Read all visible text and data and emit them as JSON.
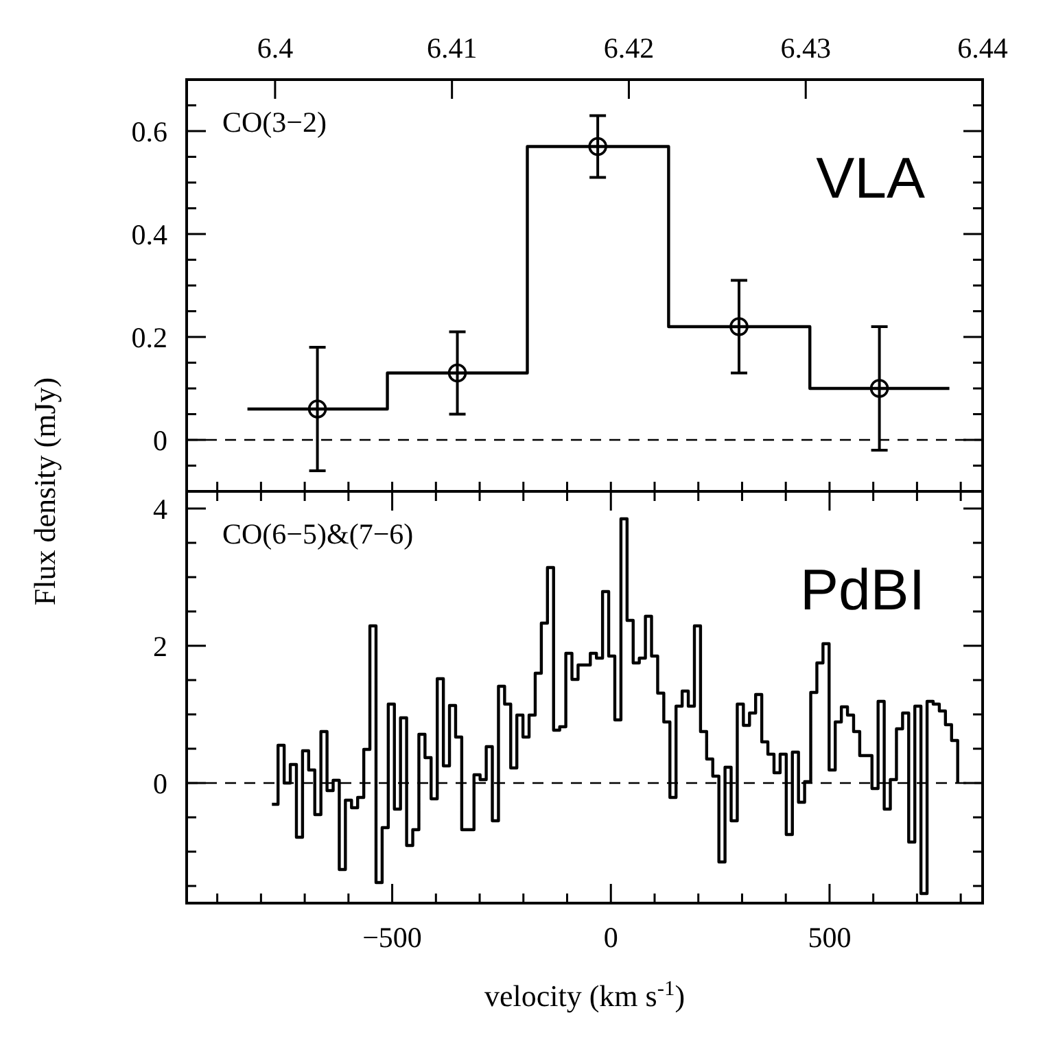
{
  "chart_data": [
    {
      "type": "step",
      "ylabel": "Flux density (mJy)",
      "annotations": [
        "CO(3−2)",
        "VLA"
      ],
      "xlim": [
        -970,
        850
      ],
      "xticks": [
        {
          "value": -900,
          "label": null
        },
        {
          "value": -800,
          "label": null
        },
        {
          "value": -700,
          "label": null
        },
        {
          "value": -600,
          "label": null
        },
        {
          "value": -500,
          "label": null
        },
        {
          "value": -400,
          "label": null
        },
        {
          "value": -300,
          "label": null
        },
        {
          "value": -200,
          "label": null
        },
        {
          "value": -100,
          "label": null
        },
        {
          "value": 0,
          "label": null
        },
        {
          "value": 100,
          "label": null
        },
        {
          "value": 200,
          "label": null
        },
        {
          "value": 300,
          "label": null
        },
        {
          "value": 400,
          "label": null
        },
        {
          "value": 500,
          "label": null
        },
        {
          "value": 600,
          "label": null
        },
        {
          "value": 700,
          "label": null
        },
        {
          "value": 800,
          "label": null
        }
      ],
      "x2lim": [
        6.395,
        6.44
      ],
      "x2ticks": [
        6.4,
        6.41,
        6.42,
        6.43,
        6.44
      ],
      "ylim": [
        -0.1,
        0.7
      ],
      "yticks": [
        {
          "value": -0.05,
          "label": null
        },
        0,
        {
          "value": 0.05,
          "label": null
        },
        {
          "value": 0.1,
          "label": null
        },
        {
          "value": 0.15,
          "label": null
        },
        0.2,
        {
          "value": 0.25,
          "label": null
        },
        {
          "value": 0.3,
          "label": null
        },
        {
          "value": 0.35,
          "label": null
        },
        0.4,
        {
          "value": 0.45,
          "label": null
        },
        {
          "value": 0.5,
          "label": null
        },
        {
          "value": 0.55,
          "label": null
        },
        0.6,
        {
          "value": 0.65,
          "label": null
        }
      ],
      "tick_labels": "y",
      "ref_lines": [
        {
          "axis": "y",
          "value": 0,
          "line_style": "dashed"
        }
      ],
      "series": [
        {
          "type": "step",
          "color": "#000000",
          "x": [
            -831,
            -511,
            -191,
            132,
            455,
            774
          ],
          "values": [
            0.06,
            0.13,
            0.57,
            0.22,
            0.1,
            0.1
          ]
        },
        {
          "type": "scatter",
          "color": "#000000",
          "marker": "circle",
          "x": [
            -671,
            -351,
            -30,
            293,
            614
          ],
          "values": [
            0.06,
            0.13,
            0.57,
            0.22,
            0.1
          ],
          "errors": [
            0.12,
            0.08,
            0.06,
            0.09,
            0.12
          ]
        }
      ]
    },
    {
      "type": "step",
      "xlabel": "velocity (km s$^{-1}$)",
      "annotations": [
        "CO(6−5)&(7−6)",
        "PdBI"
      ],
      "xlim": [
        -970,
        850
      ],
      "xticks": [
        {
          "value": -900,
          "label": null
        },
        {
          "value": -800,
          "label": null
        },
        {
          "value": -700,
          "label": null
        },
        {
          "value": -600,
          "label": null
        },
        {
          "value": -500,
          "label": "−500"
        },
        {
          "value": -400,
          "label": null
        },
        {
          "value": -300,
          "label": null
        },
        {
          "value": -200,
          "label": null
        },
        {
          "value": -100,
          "label": null
        },
        0,
        {
          "value": 100,
          "label": null
        },
        {
          "value": 200,
          "label": null
        },
        {
          "value": 300,
          "label": null
        },
        {
          "value": 400,
          "label": null
        },
        500,
        {
          "value": 600,
          "label": null
        },
        {
          "value": 700,
          "label": null
        },
        {
          "value": 800,
          "label": null
        }
      ],
      "ylim": [
        -1.75,
        4.25
      ],
      "yticks": [
        {
          "value": -1.5,
          "label": null
        },
        {
          "value": -1,
          "label": null
        },
        {
          "value": -0.5,
          "label": null
        },
        0,
        {
          "value": 0.5,
          "label": null
        },
        {
          "value": 1,
          "label": null
        },
        {
          "value": 1.5,
          "label": null
        },
        2,
        {
          "value": 2.5,
          "label": null
        },
        {
          "value": 3,
          "label": null
        },
        {
          "value": 3.5,
          "label": null
        },
        4
      ],
      "ref_lines": [
        {
          "axis": "y",
          "value": 0,
          "line_style": "dashed"
        }
      ],
      "series": [
        {
          "type": "step",
          "color": "#000000",
          "x": [
            -775,
            -761,
            -747,
            -733,
            -719,
            -705,
            -691,
            -677,
            -663,
            -649,
            -635,
            -621,
            -607,
            -593,
            -579,
            -565,
            -551,
            -537,
            -523,
            -509,
            -495,
            -481,
            -467,
            -453,
            -439,
            -425,
            -411,
            -397,
            -383,
            -369,
            -355,
            -341,
            -327,
            -313,
            -299,
            -285,
            -271,
            -257,
            -243,
            -229,
            -215,
            -201,
            -187,
            -173,
            -159,
            -145,
            -131,
            -117,
            -103,
            -89,
            -75,
            -61,
            -47,
            -33,
            -19,
            -5,
            9,
            23,
            37,
            51,
            65,
            79,
            93,
            107,
            121,
            135,
            149,
            163,
            177,
            191,
            205,
            219,
            233,
            247,
            261,
            275,
            289,
            303,
            317,
            331,
            345,
            359,
            373,
            387,
            401,
            415,
            429,
            443,
            457,
            471,
            485,
            499,
            513,
            527,
            541,
            555,
            569,
            583,
            597,
            611,
            625,
            639,
            653,
            667,
            681,
            695,
            709,
            723,
            737,
            751,
            765,
            779,
            793
          ],
          "values": [
            -0.31,
            0.55,
            0.0,
            0.27,
            -0.79,
            0.47,
            0.19,
            -0.46,
            0.75,
            -0.11,
            0.04,
            -1.26,
            -0.25,
            -0.36,
            -0.21,
            0.49,
            2.29,
            -1.45,
            -0.65,
            1.15,
            -0.38,
            0.95,
            -0.91,
            -0.68,
            0.71,
            0.37,
            -0.23,
            1.52,
            0.25,
            1.13,
            0.67,
            -0.68,
            -0.68,
            0.12,
            0.05,
            0.53,
            -0.55,
            1.41,
            1.15,
            0.22,
            0.99,
            0.67,
            0.99,
            1.6,
            2.33,
            3.14,
            0.77,
            0.82,
            1.89,
            1.51,
            1.72,
            1.72,
            1.89,
            1.82,
            2.79,
            1.85,
            0.92,
            3.85,
            2.37,
            1.75,
            1.82,
            2.43,
            1.85,
            1.31,
            0.89,
            -0.21,
            1.12,
            1.34,
            1.12,
            2.29,
            0.75,
            0.35,
            0.1,
            -1.15,
            0.23,
            -0.55,
            1.15,
            0.84,
            1.02,
            1.29,
            0.6,
            0.42,
            0.15,
            0.42,
            -0.75,
            0.45,
            -0.28,
            0.02,
            1.32,
            1.75,
            2.03,
            0.19,
            0.89,
            1.11,
            0.99,
            0.75,
            0.4,
            0.4,
            -0.08,
            1.19,
            -0.38,
            0.05,
            0.79,
            1.02,
            -0.86,
            1.12,
            -1.61,
            1.19,
            1.15,
            1.05,
            0.85,
            0.62,
            0.01
          ]
        }
      ]
    }
  ]
}
